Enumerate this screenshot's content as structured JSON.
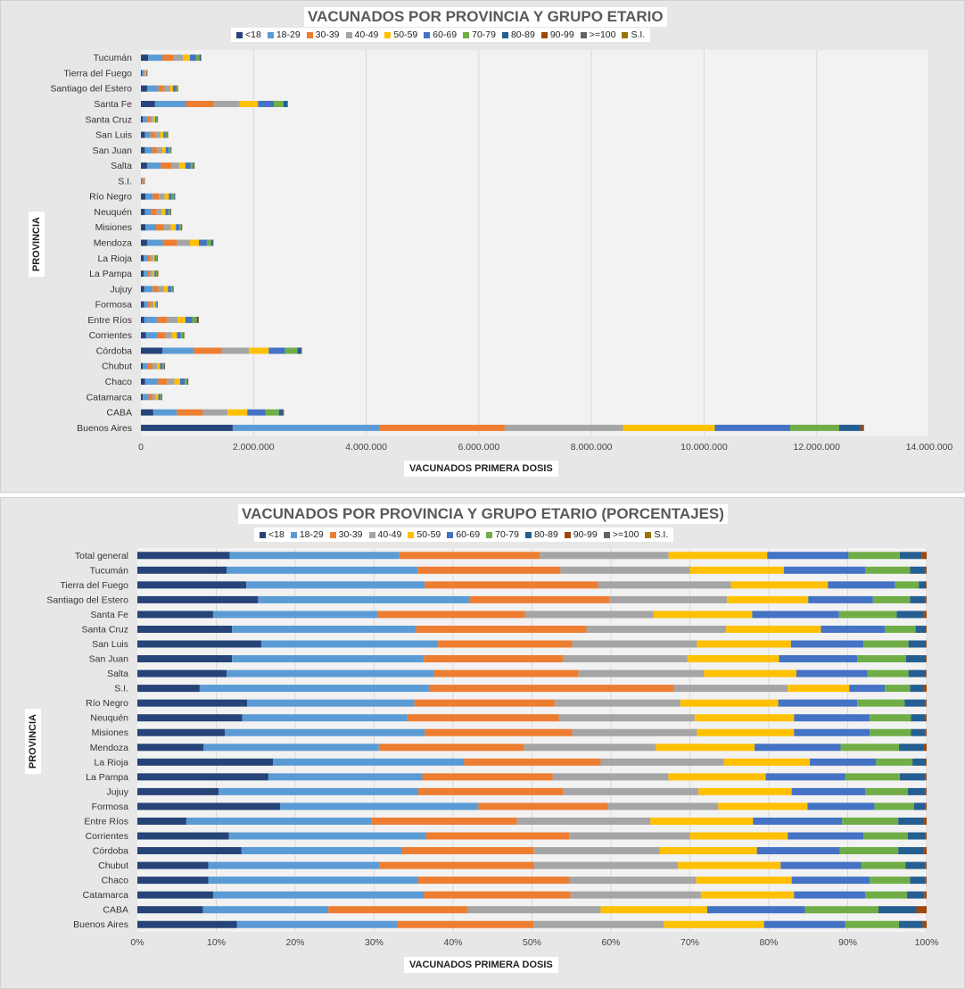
{
  "colors": [
    "#264478",
    "#5b9bd5",
    "#ed7d31",
    "#a5a5a5",
    "#ffc000",
    "#4472c4",
    "#70ad47",
    "#255e91",
    "#9e480e",
    "#636363",
    "#997300"
  ],
  "chart_data": [
    {
      "type": "stacked-bar-horizontal",
      "title": "VACUNADOS POR PROVINCIA Y GRUPO ETARIO",
      "xlabel": "VACUNADOS PRIMERA  DOSIS",
      "ylabel": "PROVINCIA",
      "xlim": [
        0,
        14000000
      ],
      "xticks": [
        "0",
        "2.000.000",
        "4.000.000",
        "6.000.000",
        "8.000.000",
        "10.000.000",
        "12.000.000",
        "14.000.000"
      ],
      "legend": [
        "<18",
        "18-29",
        "30-39",
        "40-49",
        "50-59",
        "60-69",
        "70-79",
        "80-89",
        "90-99",
        ">=100",
        "S.I."
      ],
      "categories": [
        "Tucumán",
        "Tierra del Fuego",
        "Santiago del Estero",
        "Santa Fe",
        "Santa Cruz",
        "San Luis",
        "San Juan",
        "Salta",
        "S.I.",
        "Río Negro",
        "Neuquén",
        "Misiones",
        "Mendoza",
        "La Rioja",
        "La Pampa",
        "Jujuy",
        "Formosa",
        "Entre Ríos",
        "Corrientes",
        "Córdoba",
        "Chubut",
        "Chaco",
        "Catamarca",
        "CABA",
        "Buenos Aires"
      ],
      "values": [
        [
          130000,
          250000,
          190000,
          180000,
          120000,
          110000,
          60000,
          25000,
          2000,
          0,
          0
        ],
        [
          20000,
          30000,
          18000,
          15000,
          10000,
          8000,
          4000,
          2000,
          100,
          0,
          0
        ],
        [
          110000,
          200000,
          100000,
          110000,
          50000,
          50000,
          20000,
          10000,
          1000,
          0,
          0
        ],
        [
          250000,
          550000,
          500000,
          450000,
          330000,
          280000,
          170000,
          70000,
          10000,
          0,
          0
        ],
        [
          35000,
          70000,
          60000,
          50000,
          35000,
          25000,
          15000,
          5000,
          300,
          0,
          0
        ],
        [
          70000,
          100000,
          80000,
          90000,
          60000,
          40000,
          25000,
          10000,
          500,
          0,
          0
        ],
        [
          70000,
          130000,
          90000,
          90000,
          60000,
          55000,
          30000,
          10000,
          700,
          0,
          0
        ],
        [
          110000,
          240000,
          190000,
          140000,
          110000,
          90000,
          45000,
          20000,
          1000,
          0,
          0
        ],
        [
          5000,
          17000,
          18000,
          9000,
          5000,
          3000,
          1000,
          500,
          50,
          0,
          0
        ],
        [
          80000,
          130000,
          110000,
          100000,
          75000,
          55000,
          35000,
          15000,
          1000,
          0,
          0
        ],
        [
          70000,
          110000,
          100000,
          90000,
          65000,
          55000,
          30000,
          10000,
          500,
          0,
          0
        ],
        [
          80000,
          190000,
          140000,
          120000,
          90000,
          60000,
          30000,
          15000,
          1000,
          0,
          0
        ],
        [
          110000,
          280000,
          250000,
          230000,
          160000,
          140000,
          80000,
          30000,
          2000,
          0,
          0
        ],
        [
          50000,
          70000,
          50000,
          45000,
          30000,
          25000,
          15000,
          5000,
          300,
          0,
          0
        ],
        [
          50000,
          60000,
          50000,
          45000,
          35000,
          30000,
          20000,
          10000,
          500,
          0,
          0
        ],
        [
          60000,
          150000,
          100000,
          100000,
          70000,
          55000,
          30000,
          10000,
          500,
          0,
          0
        ],
        [
          55000,
          75000,
          50000,
          45000,
          35000,
          20000,
          10000,
          3000,
          200,
          0,
          0
        ],
        [
          60000,
          230000,
          180000,
          180000,
          140000,
          120000,
          80000,
          30000,
          2000,
          0,
          0
        ],
        [
          90000,
          200000,
          140000,
          120000,
          90000,
          70000,
          40000,
          15000,
          1000,
          0,
          0
        ],
        [
          380000,
          560000,
          500000,
          480000,
          350000,
          290000,
          220000,
          70000,
          5000,
          0,
          0
        ],
        [
          35000,
          85000,
          85000,
          80000,
          55000,
          45000,
          25000,
          10000,
          500,
          0,
          0
        ],
        [
          75000,
          230000,
          160000,
          130000,
          100000,
          85000,
          40000,
          15000,
          1000,
          0,
          0
        ],
        [
          35000,
          100000,
          70000,
          60000,
          45000,
          35000,
          20000,
          5000,
          300,
          0,
          0
        ],
        [
          220000,
          420000,
          460000,
          440000,
          350000,
          320000,
          240000,
          70000,
          20000,
          0,
          0
        ],
        [
          1630000,
          2600000,
          2230000,
          2100000,
          1630000,
          1340000,
          870000,
          380000,
          60000,
          0,
          0
        ]
      ]
    },
    {
      "type": "stacked-bar-horizontal-percent",
      "title": "VACUNADOS POR PROVINCIA Y GRUPO ETARIO (PORCENTAJES)",
      "xlabel": "VACUNADOS PRIMERA  DOSIS",
      "ylabel": "PROVINCIA",
      "xlim": [
        0,
        100
      ],
      "xticks": [
        "0%",
        "10%",
        "20%",
        "30%",
        "40%",
        "50%",
        "60%",
        "70%",
        "80%",
        "90%",
        "100%"
      ],
      "legend": [
        "<18",
        "18-29",
        "30-39",
        "40-49",
        "50-59",
        "60-69",
        "70-79",
        "80-89",
        "90-99",
        ">=100",
        "S.I."
      ],
      "categories": [
        "Total general",
        "Tucumán",
        "Tierra del Fuego",
        "Santiago del Estero",
        "Santa Fe",
        "Santa Cruz",
        "San Luis",
        "San Juan",
        "Salta",
        "S.I.",
        "Río Negro",
        "Neuquén",
        "Misiones",
        "Mendoza",
        "La Rioja",
        "La Pampa",
        "Jujuy",
        "Formosa",
        "Entre Ríos",
        "Corrientes",
        "Córdoba",
        "Chubut",
        "Chaco",
        "Catamarca",
        "CABA",
        "Buenos Aires"
      ],
      "cumulative_percent": [
        [
          11.7,
          33.2,
          51.0,
          67.3,
          79.8,
          90.1,
          96.6,
          99.4,
          100,
          100,
          100
        ],
        [
          11.3,
          35.5,
          53.6,
          70.0,
          81.9,
          92.2,
          97.9,
          99.8,
          100,
          100,
          100
        ],
        [
          13.8,
          36.4,
          58.4,
          75.2,
          87.5,
          96.0,
          99.0,
          99.9,
          100,
          100,
          100
        ],
        [
          15.3,
          42.1,
          59.8,
          74.7,
          85.0,
          93.2,
          97.9,
          99.8,
          100,
          100,
          100
        ],
        [
          9.6,
          30.5,
          49.1,
          65.4,
          77.9,
          88.9,
          96.2,
          99.6,
          100,
          100,
          100
        ],
        [
          12.0,
          35.3,
          56.9,
          74.6,
          86.6,
          94.7,
          98.6,
          99.9,
          100,
          100,
          100
        ],
        [
          15.7,
          38.1,
          55.1,
          70.9,
          82.8,
          92.0,
          97.7,
          99.9,
          100,
          100,
          100
        ],
        [
          12.0,
          36.3,
          53.9,
          69.7,
          81.3,
          91.2,
          97.4,
          99.9,
          100,
          100,
          100
        ],
        [
          11.3,
          37.6,
          55.9,
          71.8,
          83.5,
          92.5,
          97.7,
          99.9,
          100,
          100,
          100
        ],
        [
          7.9,
          37.0,
          68.0,
          82.4,
          90.2,
          94.7,
          97.9,
          99.6,
          100,
          100,
          100
        ],
        [
          13.9,
          35.1,
          52.9,
          68.8,
          81.2,
          91.2,
          97.2,
          99.8,
          100,
          100,
          100
        ],
        [
          13.3,
          34.2,
          53.4,
          70.6,
          83.2,
          92.8,
          98.0,
          99.8,
          100,
          100,
          100
        ],
        [
          11.1,
          36.4,
          55.1,
          70.9,
          83.2,
          92.8,
          98.0,
          99.8,
          100,
          100,
          100
        ],
        [
          8.4,
          30.6,
          49.0,
          65.7,
          78.2,
          89.1,
          96.5,
          99.6,
          100,
          100,
          100
        ],
        [
          17.2,
          41.4,
          58.7,
          74.3,
          85.2,
          93.6,
          98.2,
          99.9,
          100,
          100,
          100
        ],
        [
          16.6,
          36.1,
          52.6,
          67.3,
          79.6,
          89.7,
          96.6,
          99.8,
          100,
          100,
          100
        ],
        [
          10.3,
          35.6,
          53.9,
          71.1,
          82.9,
          92.2,
          97.6,
          99.8,
          100,
          100,
          100
        ],
        [
          18.1,
          43.2,
          59.6,
          73.6,
          84.9,
          93.4,
          98.4,
          99.8,
          100,
          100,
          100
        ],
        [
          6.2,
          29.7,
          48.1,
          65.0,
          78.0,
          89.3,
          96.4,
          99.6,
          100,
          100,
          100
        ],
        [
          11.6,
          36.6,
          54.7,
          70.0,
          82.4,
          92.0,
          97.6,
          99.8,
          100,
          100,
          100
        ],
        [
          13.2,
          33.5,
          50.2,
          66.2,
          78.5,
          89.0,
          96.4,
          99.6,
          100,
          100,
          100
        ],
        [
          9.0,
          30.7,
          50.3,
          68.5,
          81.5,
          91.7,
          97.3,
          99.8,
          100,
          100,
          100
        ],
        [
          9.0,
          35.6,
          54.8,
          70.8,
          82.9,
          92.8,
          97.9,
          99.8,
          100,
          100,
          100
        ],
        [
          9.6,
          36.3,
          54.9,
          71.4,
          83.2,
          92.2,
          97.5,
          99.7,
          100,
          100,
          100
        ],
        [
          8.3,
          24.2,
          41.8,
          58.7,
          72.2,
          84.6,
          93.9,
          98.7,
          100,
          100,
          100
        ],
        [
          12.6,
          33.0,
          50.2,
          66.7,
          79.4,
          89.7,
          96.5,
          99.5,
          100,
          100,
          100
        ]
      ]
    }
  ]
}
